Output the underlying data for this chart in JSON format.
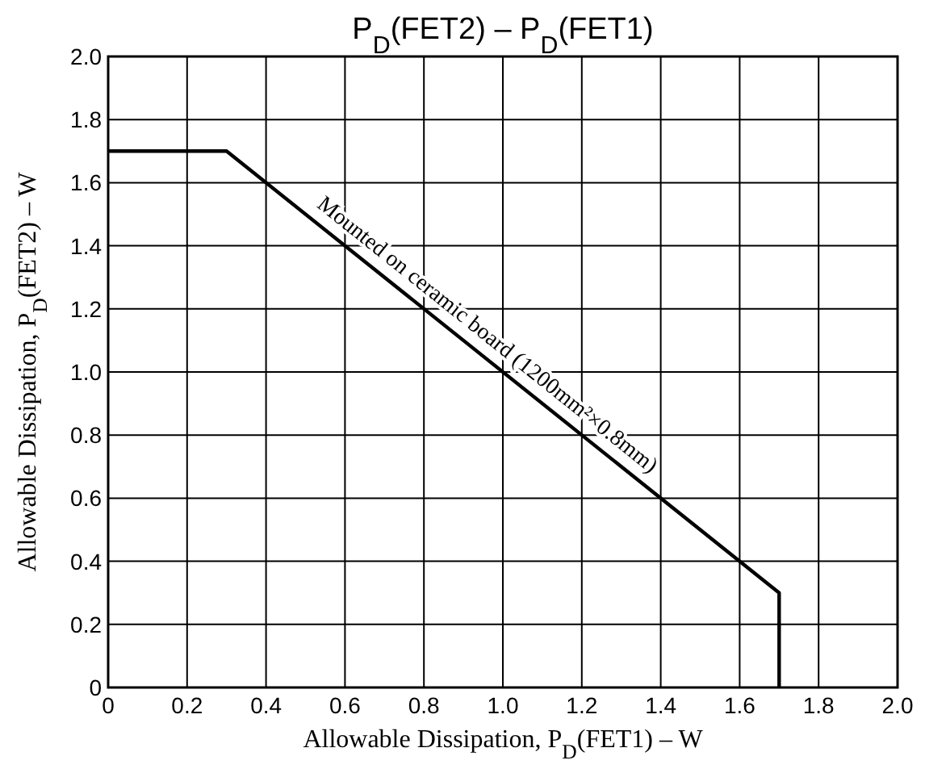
{
  "chart_data": {
    "type": "line",
    "title": "P$_{D}$(FET2)  –  P$_{D}$(FET1)",
    "xlabel": "Allowable Dissipation, P$_{D}$(FET1)  –  W",
    "ylabel": "Allowable Dissipation, P$_{D}$(FET2)  –  W",
    "x": [
      0,
      0.3,
      1.7,
      1.7
    ],
    "series": [
      {
        "color": "#000000",
        "values": [
          1.7,
          1.7,
          0.3,
          0
        ]
      }
    ],
    "xlim": [
      0,
      2
    ],
    "ylim": [
      0,
      2
    ],
    "xticks": [
      0,
      0.2,
      0.4,
      0.6,
      0.8,
      {
        "value": 1,
        "label": "1.0"
      },
      1.2,
      1.4,
      1.6,
      1.8,
      {
        "value": 2,
        "label": "2.0"
      }
    ],
    "yticks": [
      0,
      0.2,
      0.4,
      0.6,
      0.8,
      {
        "value": 1,
        "label": "1.0"
      },
      1.2,
      1.4,
      1.6,
      1.8,
      {
        "value": 2,
        "label": "2.0"
      }
    ],
    "grid": true,
    "marker": "none",
    "line_style": "solid",
    "annotations": [
      "Mounted on ceramic board (1200mm²×0.8mm)"
    ]
  }
}
